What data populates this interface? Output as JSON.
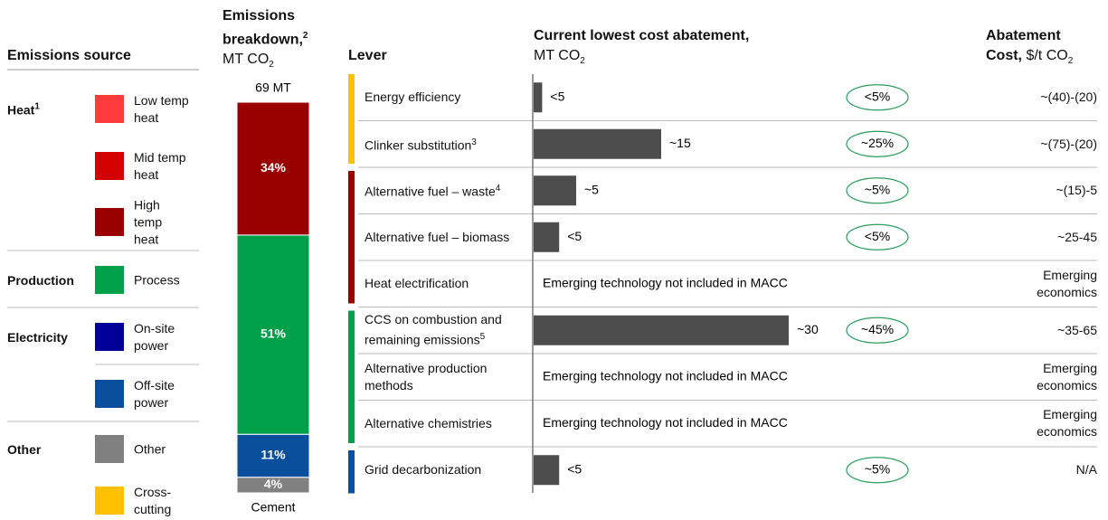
{
  "emissions_source": {
    "header": "Emissions source",
    "groups": [
      {
        "name": "Heat",
        "note": "1",
        "items": [
          {
            "name": "Low temp heat",
            "color": "#ff3b3b"
          },
          {
            "name": "Mid temp heat",
            "color": "#d40000"
          },
          {
            "name": "High temp heat",
            "color": "#990000"
          }
        ]
      },
      {
        "name": "Production",
        "items": [
          {
            "name": "Process",
            "color": "#00a04b"
          }
        ]
      },
      {
        "name": "Electricity",
        "items": [
          {
            "name": "On-site power",
            "color": "#000099"
          },
          {
            "name": "Off-site power",
            "color": "#0a4f9e"
          }
        ]
      },
      {
        "name": "Other",
        "items": [
          {
            "name": "Other",
            "color": "#808080"
          },
          {
            "name": "Cross-cutting",
            "color": "#ffc000"
          }
        ]
      }
    ]
  },
  "chart_data": [
    {
      "type": "stacked_bar",
      "title": [
        "Emissions",
        "breakdown,"
      ],
      "title_note": "2",
      "unit": "MT CO",
      "unit_subscript": "2",
      "total_label": "69 MT",
      "categories": [
        "Cement"
      ],
      "ylim": [
        0,
        100
      ],
      "series": [
        {
          "color": "#808080",
          "values": [
            4
          ],
          "value_labels": [
            "4%"
          ]
        },
        {
          "color": "#0a4f9e",
          "values": [
            11
          ],
          "value_labels": [
            "11%"
          ]
        },
        {
          "color": "#00a04b",
          "values": [
            51
          ],
          "value_labels": [
            "51%"
          ]
        },
        {
          "color": "#990000",
          "values": [
            34
          ],
          "value_labels": [
            "34%"
          ]
        }
      ]
    },
    {
      "type": "barh",
      "category_header": "Lever",
      "title": "Current lowest cost abatement,",
      "unit": "MT CO",
      "unit_subscript": "2",
      "categories": [
        "Energy efficiency",
        "Clinker substitution",
        "Alternative fuel – waste",
        "Alternative fuel – biomass",
        "Heat electrification",
        "CCS on combustion and remaining emissions",
        "Alternative production methods",
        "Alternative chemistries",
        "Grid decarbonization"
      ],
      "footnotes": [
        null,
        "3",
        "4",
        null,
        null,
        "5",
        null,
        null,
        null
      ],
      "group_colors": [
        "#ffc000",
        "#ffc000",
        "#990000",
        "#990000",
        "#990000",
        "#00a04b",
        "#00a04b",
        "#00a04b",
        "#0a4f9e"
      ],
      "values": [
        1,
        15,
        5,
        3,
        null,
        30,
        null,
        null,
        3
      ],
      "value_labels": [
        "<5",
        "~15",
        "~5",
        "<5",
        null,
        "~30",
        null,
        null,
        "<5"
      ],
      "notes": [
        null,
        null,
        null,
        null,
        "Emerging technology not included in MACC",
        null,
        "Emerging technology not included in MACC",
        "Emerging technology not included in MACC",
        null
      ],
      "shares": [
        "<5%",
        "~25%",
        "~5%",
        "<5%",
        null,
        "~45%",
        null,
        null,
        "~5%"
      ],
      "color": "#4d4d4d",
      "xlim": [
        0,
        35
      ],
      "cost_header": {
        "title": "Abatement Cost,",
        "unit": "$/t CO",
        "unit_subscript": "2"
      },
      "costs": [
        "~(40)-(20)",
        "~(75)-(20)",
        "~(15)-5",
        "~25-45",
        "Emerging economics",
        "~35-65",
        "Emerging economics",
        "Emerging economics",
        "N/A"
      ]
    }
  ]
}
